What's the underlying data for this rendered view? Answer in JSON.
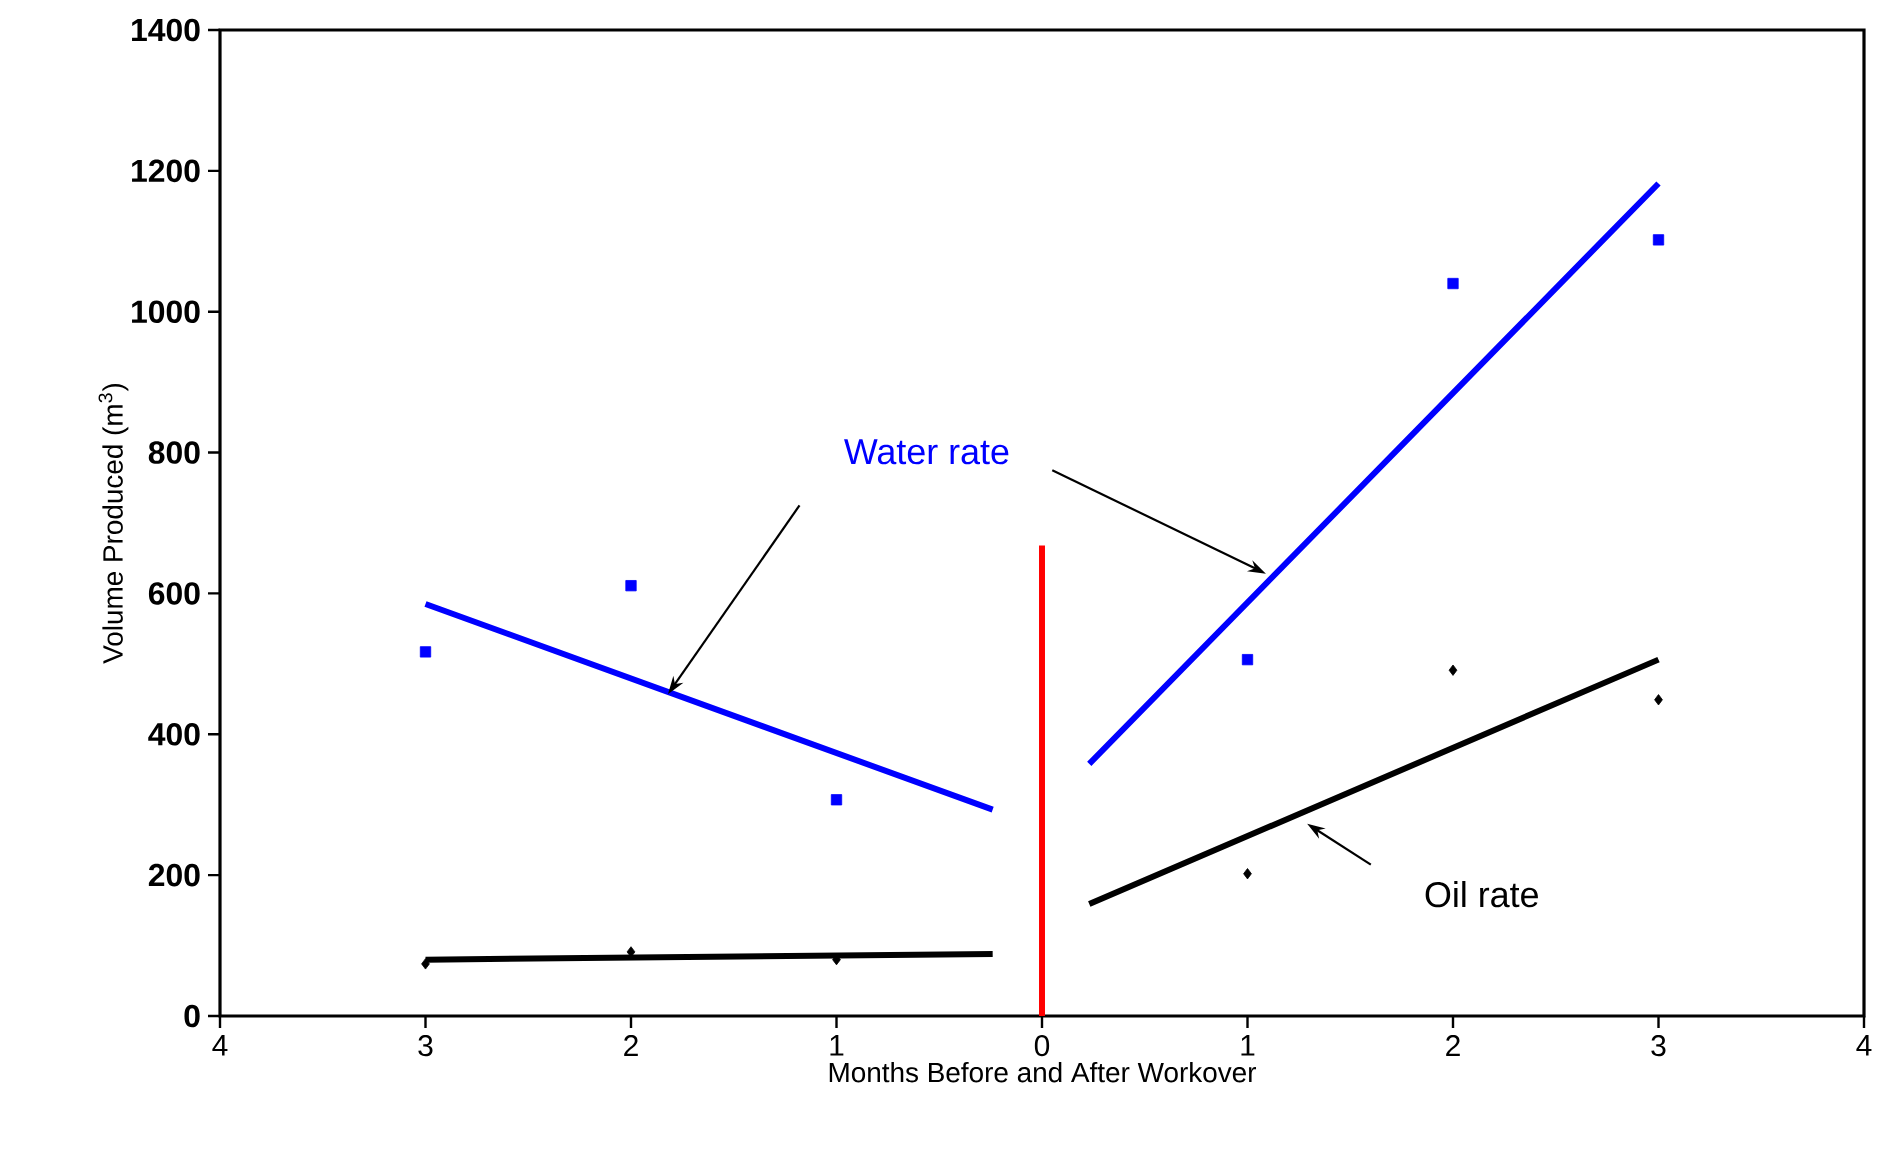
{
  "chart_data": {
    "type": "scatter",
    "xlabel": "Months Before and After Workover",
    "ylabel": "Volume Produced (m$^{3}$)",
    "xlim": [
      -4,
      4
    ],
    "xticks": [
      {
        "value": -4,
        "label": "4"
      },
      {
        "value": -3,
        "label": "3"
      },
      {
        "value": -2,
        "label": "2"
      },
      {
        "value": -1,
        "label": "1"
      },
      0,
      1,
      2,
      3,
      4
    ],
    "ylim": [
      0,
      1400
    ],
    "yticks": [
      0,
      200,
      400,
      600,
      800,
      1000,
      1200,
      1400
    ],
    "grid": false,
    "series": [
      {
        "marker": "square",
        "color": "#0000ff",
        "x": [
          -3,
          -2,
          -1,
          1,
          2,
          3
        ],
        "values": [
          517,
          611,
          307,
          506,
          1040,
          1102
        ]
      },
      {
        "marker": "diamond",
        "color": "#000000",
        "x": [
          -3,
          -2,
          -1,
          1,
          2,
          3
        ],
        "values": [
          74,
          91,
          80,
          202,
          491,
          449
        ]
      },
      {
        "type": "line",
        "name": "Water rate",
        "color": "#0000ff",
        "line_style": "solid",
        "marker": "none",
        "x": [
          -3,
          -0.24,
          0,
          0.23,
          3
        ],
        "values": [
          585,
          293,
          null,
          358,
          1182
        ]
      },
      {
        "type": "line",
        "name": "Oil rate",
        "color": "#000000",
        "line_style": "solid",
        "marker": "none",
        "x": [
          -3,
          -0.24,
          0,
          0.23,
          3
        ],
        "values": [
          80,
          88,
          null,
          159,
          506
        ]
      },
      {
        "type": "line",
        "color": "#ff0000",
        "line_style": "solid",
        "marker": "none",
        "x": [
          0,
          0
        ],
        "values": [
          0,
          668
        ]
      }
    ]
  }
}
